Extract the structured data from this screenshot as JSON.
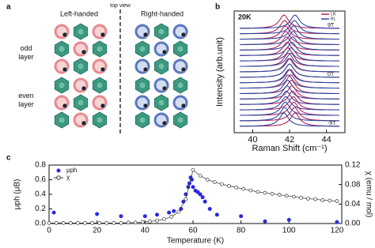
{
  "diagram": {
    "panel": "a",
    "top_view": "top view",
    "left": "Left-handed",
    "right": "Right-handed",
    "layers": [
      "odd layer",
      "even layer"
    ]
  },
  "chart_data": [
    {
      "type": "line",
      "panel": "b",
      "title": "20K",
      "xlabel": "Raman Shift (cm⁻¹)",
      "ylabel": "Intensity (arb.unit)",
      "xlim": [
        39,
        45
      ],
      "xticks": [
        40,
        42,
        44
      ],
      "categories": [
        "9T",
        null,
        null,
        null,
        null,
        null,
        null,
        null,
        null,
        "0T",
        null,
        null,
        null,
        null,
        null,
        null,
        null,
        null,
        "-9T"
      ],
      "series": [
        {
          "name": "LR",
          "color": "#b5225b",
          "values": [
            41.7,
            41.73,
            41.77,
            41.8,
            41.83,
            41.87,
            41.9,
            41.93,
            41.97,
            42.0,
            42.03,
            42.07,
            42.1,
            42.13,
            42.17,
            42.2,
            42.23,
            42.27,
            42.3
          ]
        },
        {
          "name": "RL",
          "color": "#2b4aa0",
          "values": [
            42.3,
            42.27,
            42.23,
            42.2,
            42.17,
            42.13,
            42.1,
            42.07,
            42.03,
            42.0,
            41.97,
            41.93,
            41.9,
            41.87,
            41.83,
            41.8,
            41.77,
            41.73,
            41.7
          ]
        }
      ]
    },
    {
      "type": "scatter",
      "panel": "c",
      "xlabel": "Temperature (K)",
      "ylabel": "μph (μB)",
      "y2label": "χ (emu / mol)",
      "xlim": [
        0,
        122
      ],
      "xticks": [
        0,
        20,
        40,
        60,
        80,
        100,
        120
      ],
      "ylim": [
        0,
        0.8
      ],
      "yticks": [
        {
          "value": 0,
          "label": "0.0"
        },
        0.2,
        0.4,
        0.6,
        0.8
      ],
      "y2lim": [
        0,
        0.12
      ],
      "y2ticks": [
        {
          "value": 0,
          "label": "0.00"
        },
        0.04,
        0.08,
        0.12
      ],
      "series": [
        {
          "name": "μph",
          "color": "#2a2ae0",
          "x": [
            2,
            20,
            30,
            40,
            45,
            50,
            52,
            55,
            56,
            57,
            58,
            58.5,
            59,
            59.5,
            60,
            61,
            62,
            63,
            64,
            65,
            67,
            70,
            80,
            90,
            100,
            120
          ],
          "values": [
            0.15,
            0.13,
            0.1,
            0.1,
            0.12,
            0.15,
            0.17,
            0.2,
            0.3,
            0.4,
            0.5,
            0.55,
            0.63,
            0.6,
            0.5,
            0.45,
            0.43,
            0.4,
            0.36,
            0.3,
            0.2,
            0.12,
            0.1,
            0.03,
            0.05,
            0.02
          ]
        },
        {
          "name": "χ",
          "color": "#333333",
          "axis": "y2",
          "x": [
            0,
            3,
            6,
            9,
            12,
            15,
            18,
            21,
            24,
            27,
            30,
            33,
            36,
            39,
            42,
            45,
            48,
            51,
            54,
            57,
            60,
            63,
            66,
            69,
            72,
            75,
            78,
            81,
            84,
            87,
            90,
            93,
            96,
            99,
            102,
            105,
            108,
            111,
            114,
            117,
            120
          ],
          "values": [
            0.001,
            0.001,
            0.001,
            0.001,
            0.001,
            0.001,
            0.001,
            0.001,
            0.001,
            0.001,
            0.001,
            0.002,
            0.002,
            0.003,
            0.004,
            0.006,
            0.009,
            0.014,
            0.024,
            0.05,
            0.11,
            0.098,
            0.09,
            0.085,
            0.081,
            0.077,
            0.074,
            0.071,
            0.068,
            0.065,
            0.063,
            0.061,
            0.059,
            0.057,
            0.055,
            0.053,
            0.051,
            0.05,
            0.048,
            0.047,
            0.046
          ]
        }
      ]
    }
  ]
}
